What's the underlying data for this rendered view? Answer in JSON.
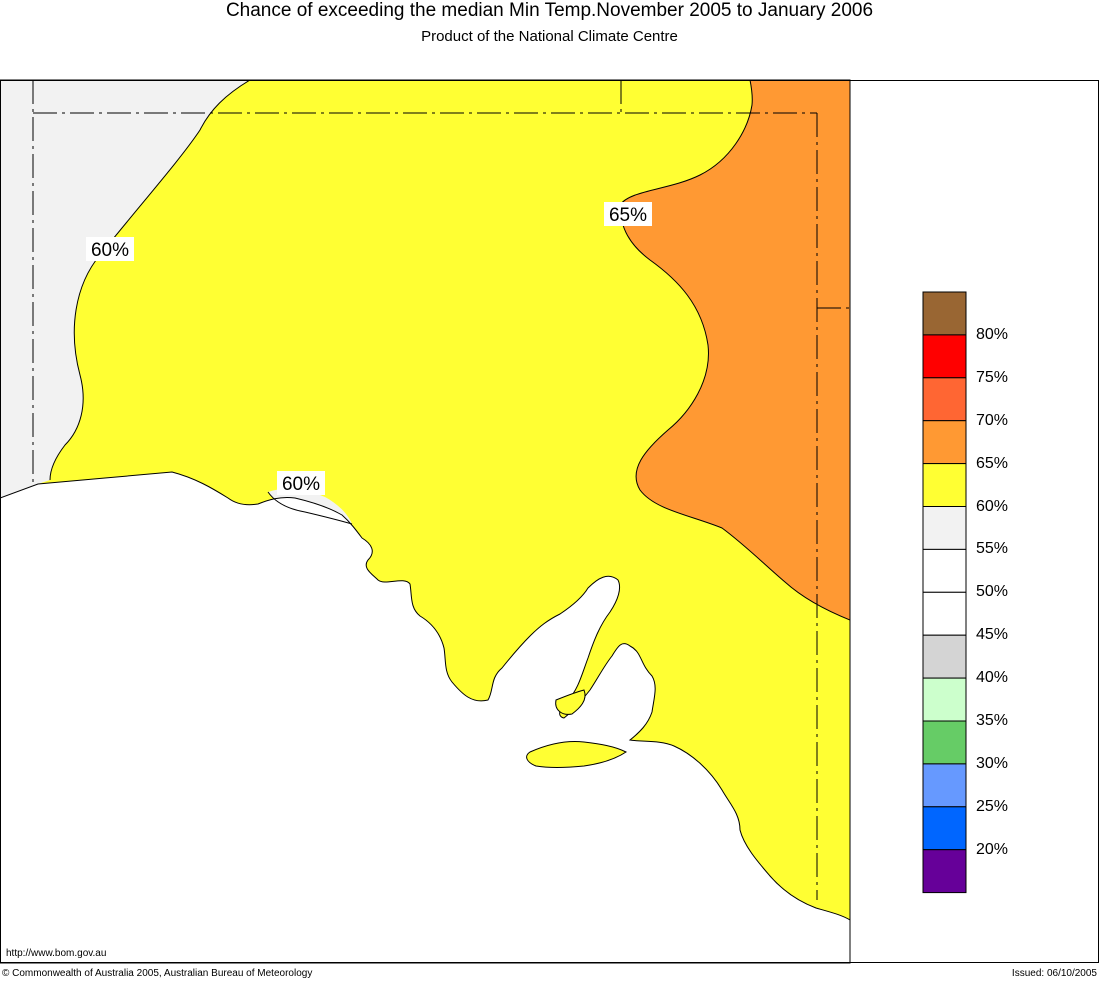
{
  "header": {
    "title": "Chance of exceeding the median Min Temp.November 2005 to January 2006",
    "subtitle": "Product of the National Climate Centre"
  },
  "map": {
    "contour_labels": [
      "60%",
      "65%",
      "60%"
    ],
    "region_colors": {
      "below_55": "#f2f2f2",
      "p60_65": "#ffff33",
      "p65_70": "#ff9933",
      "ocean": "#ffffff"
    }
  },
  "legend": {
    "items": [
      {
        "label": "80%",
        "color": "#996633"
      },
      {
        "label": "75%",
        "color": "#ff0000"
      },
      {
        "label": "70%",
        "color": "#ff6633"
      },
      {
        "label": "65%",
        "color": "#ff9933"
      },
      {
        "label": "60%",
        "color": "#ffff33"
      },
      {
        "label": "55%",
        "color": "#f2f2f2"
      },
      {
        "label": "50%",
        "color": "#ffffff"
      },
      {
        "label": "45%",
        "color": "#ffffff"
      },
      {
        "label": "40%",
        "color": "#d4d4d4"
      },
      {
        "label": "35%",
        "color": "#ccffcc"
      },
      {
        "label": "30%",
        "color": "#66cc66"
      },
      {
        "label": "25%",
        "color": "#6699ff"
      },
      {
        "label": "20%",
        "color": "#0066ff"
      },
      {
        "label": "",
        "color": "#660099"
      }
    ]
  },
  "footer": {
    "url": "http://www.bom.gov.au",
    "copyright": "© Commonwealth of Australia 2005, Australian Bureau of Meteorology",
    "issued": "Issued: 06/10/2005"
  }
}
